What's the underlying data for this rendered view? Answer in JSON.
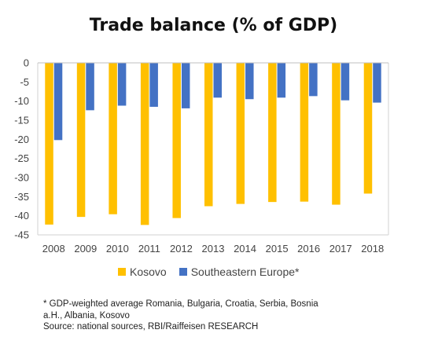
{
  "chart_data": {
    "type": "bar",
    "title": "Trade balance (% of GDP)",
    "categories": [
      "2008",
      "2009",
      "2010",
      "2011",
      "2012",
      "2013",
      "2014",
      "2015",
      "2016",
      "2017",
      "2018"
    ],
    "series": [
      {
        "name": "Kosovo",
        "color": "#FFC000",
        "values": [
          -42.3,
          -40.3,
          -39.6,
          -42.4,
          -40.6,
          -37.5,
          -36.9,
          -36.4,
          -36.3,
          -37.1,
          -34.2
        ]
      },
      {
        "name": "Southeastern Europe*",
        "color": "#4472C4",
        "values": [
          -20.2,
          -12.4,
          -11.2,
          -11.5,
          -11.9,
          -9.1,
          -9.5,
          -9.1,
          -8.7,
          -9.8,
          -10.4
        ]
      }
    ],
    "ylim": [
      -45,
      0
    ],
    "yticks": [
      0,
      -5,
      -10,
      -15,
      -20,
      -25,
      -30,
      -35,
      -40,
      -45
    ],
    "xlabel": "",
    "ylabel": "",
    "grid": false,
    "legend_position": "bottom"
  },
  "footnote": {
    "line1": "* GDP-weighted average Romania, Bulgaria, Croatia, Serbia, Bosnia",
    "line2": "a.H., Albania, Kosovo",
    "line3": "Source: national sources, RBI/Raiffeisen RESEARCH"
  }
}
